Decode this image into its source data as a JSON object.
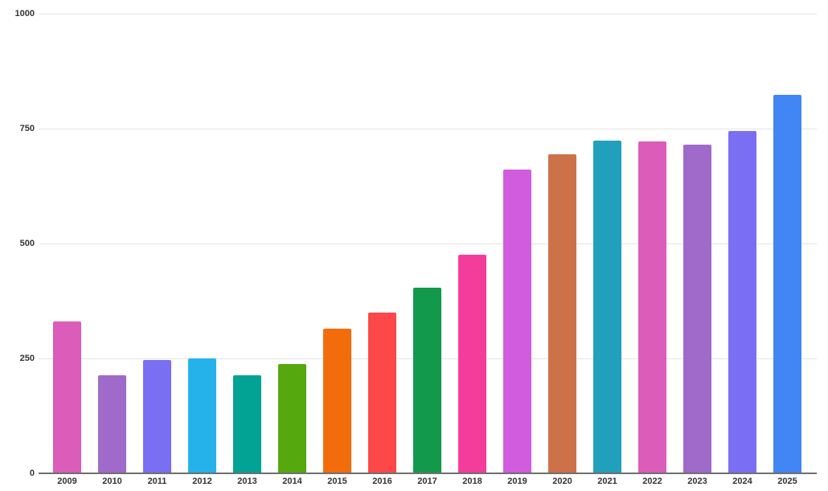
{
  "chart_data": {
    "type": "bar",
    "title": "",
    "xlabel": "",
    "ylabel": "",
    "categories": [
      "2009",
      "2010",
      "2011",
      "2012",
      "2013",
      "2014",
      "2015",
      "2016",
      "2017",
      "2018",
      "2019",
      "2020",
      "2021",
      "2022",
      "2023",
      "2024",
      "2025"
    ],
    "values": [
      330,
      214,
      246,
      250,
      214,
      238,
      315,
      350,
      403,
      476,
      660,
      694,
      723,
      722,
      715,
      745,
      824
    ],
    "bar_colors": [
      "#DC5CBA",
      "#9F6ACA",
      "#7A6FF2",
      "#25B2EA",
      "#02A294",
      "#55A80D",
      "#F36C0B",
      "#FC4848",
      "#12994B",
      "#F43D9B",
      "#D25CDE",
      "#CD7148",
      "#21A0BC",
      "#DC5CBA",
      "#9F6ACA",
      "#7A6FF2",
      "#4285F4"
    ],
    "ylim": [
      0,
      1000
    ],
    "yticks": [
      0,
      250,
      500,
      750,
      1000
    ],
    "ytick_labels": [
      "0",
      "250",
      "500",
      "750",
      "1000"
    ],
    "grid": true,
    "legend_position": "none"
  },
  "colors": {
    "background": "#FFFFFF",
    "gridline": "#E4E4E4",
    "axis_line": "#6F6F6F",
    "tick_label": "#333333"
  }
}
